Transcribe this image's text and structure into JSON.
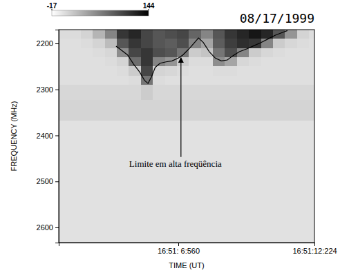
{
  "chart_data": {
    "type": "heatmap",
    "title": "08/17/1999",
    "x_label": "TIME (UT)",
    "y_label": "FREQUENCY (MHz)",
    "xlim": [
      1.586,
      12.224
    ],
    "xticks": [
      {
        "value": 6.56,
        "label": "16:51: 6:560"
      },
      {
        "value": 12.224,
        "label": "16:51:12:224"
      }
    ],
    "ylim": [
      2170,
      2633
    ],
    "yticks": [
      2200,
      2300,
      2400,
      2500,
      2600
    ],
    "grid": false,
    "colorbar": {
      "range": [
        -17,
        144
      ],
      "ticks": [
        -17,
        144
      ]
    },
    "cells": {
      "x": [
        1.75,
        2.25,
        2.75,
        3.25,
        3.75,
        4.25,
        4.75,
        5.25,
        5.75,
        6.25,
        6.75,
        7.25,
        7.75,
        8.25,
        8.75,
        9.25,
        9.75,
        10.25,
        10.75,
        11.25,
        11.75,
        12.25
      ],
      "y": [
        2180,
        2200,
        2220,
        2240,
        2260,
        2280,
        2300,
        2345,
        2390,
        2435,
        2480,
        2525,
        2570,
        2615
      ],
      "values": [
        [
          5,
          5,
          10,
          30,
          60,
          110,
          120,
          100,
          90,
          95,
          100,
          80,
          60,
          90,
          110,
          120,
          130,
          120,
          90,
          50,
          10,
          5
        ],
        [
          3,
          3,
          5,
          10,
          25,
          90,
          110,
          100,
          90,
          85,
          95,
          60,
          40,
          85,
          105,
          115,
          110,
          60,
          15,
          8,
          5,
          3
        ],
        [
          3,
          3,
          3,
          5,
          8,
          55,
          100,
          110,
          95,
          90,
          70,
          15,
          20,
          70,
          95,
          60,
          15,
          8,
          5,
          3,
          3,
          3
        ],
        [
          3,
          3,
          3,
          3,
          5,
          10,
          75,
          110,
          60,
          50,
          15,
          5,
          5,
          55,
          40,
          8,
          5,
          3,
          3,
          3,
          3,
          3
        ],
        [
          3,
          3,
          3,
          3,
          3,
          5,
          15,
          100,
          10,
          8,
          5,
          3,
          3,
          5,
          5,
          3,
          3,
          3,
          3,
          3,
          3,
          3
        ],
        [
          3,
          3,
          3,
          3,
          3,
          3,
          5,
          70,
          5,
          3,
          3,
          3,
          3,
          3,
          3,
          3,
          3,
          3,
          3,
          3,
          3,
          3
        ],
        [
          8,
          8,
          8,
          8,
          8,
          8,
          8,
          15,
          8,
          8,
          8,
          8,
          8,
          8,
          8,
          8,
          8,
          8,
          8,
          8,
          8,
          8
        ],
        [
          10,
          10,
          10,
          10,
          10,
          10,
          10,
          10,
          10,
          10,
          10,
          10,
          10,
          10,
          10,
          10,
          10,
          10,
          10,
          10,
          10,
          10
        ],
        [
          2,
          2,
          2,
          2,
          2,
          2,
          2,
          2,
          2,
          2,
          2,
          2,
          2,
          2,
          2,
          2,
          2,
          2,
          2,
          2,
          2,
          2
        ],
        [
          2,
          2,
          2,
          2,
          2,
          2,
          2,
          2,
          2,
          2,
          2,
          2,
          2,
          2,
          2,
          2,
          2,
          2,
          2,
          2,
          2,
          2
        ],
        [
          2,
          2,
          2,
          2,
          2,
          2,
          2,
          2,
          2,
          2,
          2,
          2,
          2,
          2,
          2,
          2,
          2,
          2,
          2,
          2,
          2,
          2
        ],
        [
          2,
          2,
          2,
          2,
          2,
          2,
          2,
          2,
          2,
          2,
          2,
          2,
          2,
          2,
          2,
          2,
          2,
          2,
          2,
          2,
          2,
          2
        ],
        [
          2,
          2,
          2,
          2,
          2,
          2,
          2,
          2,
          2,
          2,
          2,
          2,
          2,
          2,
          2,
          2,
          2,
          2,
          2,
          2,
          2,
          2
        ],
        [
          2,
          2,
          2,
          2,
          2,
          2,
          2,
          2,
          2,
          2,
          2,
          2,
          2,
          2,
          2,
          2,
          2,
          2,
          2,
          2,
          2,
          2
        ]
      ]
    },
    "series": [
      {
        "type": "line",
        "color": "#000000",
        "x": [
          3.97,
          4.2,
          4.45,
          4.7,
          4.95,
          5.15,
          5.3,
          5.45,
          5.6,
          5.8,
          6.05,
          6.3,
          6.55,
          6.75,
          7.0,
          7.2,
          7.4,
          7.6,
          7.85,
          8.1,
          8.35,
          8.6,
          8.85,
          9.1,
          9.4,
          9.7,
          10.0,
          10.3,
          10.6,
          10.9,
          11.1
        ],
        "values": [
          2206,
          2215,
          2225,
          2245,
          2262,
          2280,
          2287,
          2272,
          2252,
          2243,
          2240,
          2238,
          2232,
          2225,
          2212,
          2200,
          2188,
          2198,
          2218,
          2232,
          2238,
          2236,
          2226,
          2218,
          2212,
          2205,
          2198,
          2190,
          2182,
          2176,
          2172
        ]
      }
    ],
    "annotations": [
      {
        "text": "Limite em alta freqüência",
        "x": 6.67,
        "y": 2228
      }
    ]
  }
}
